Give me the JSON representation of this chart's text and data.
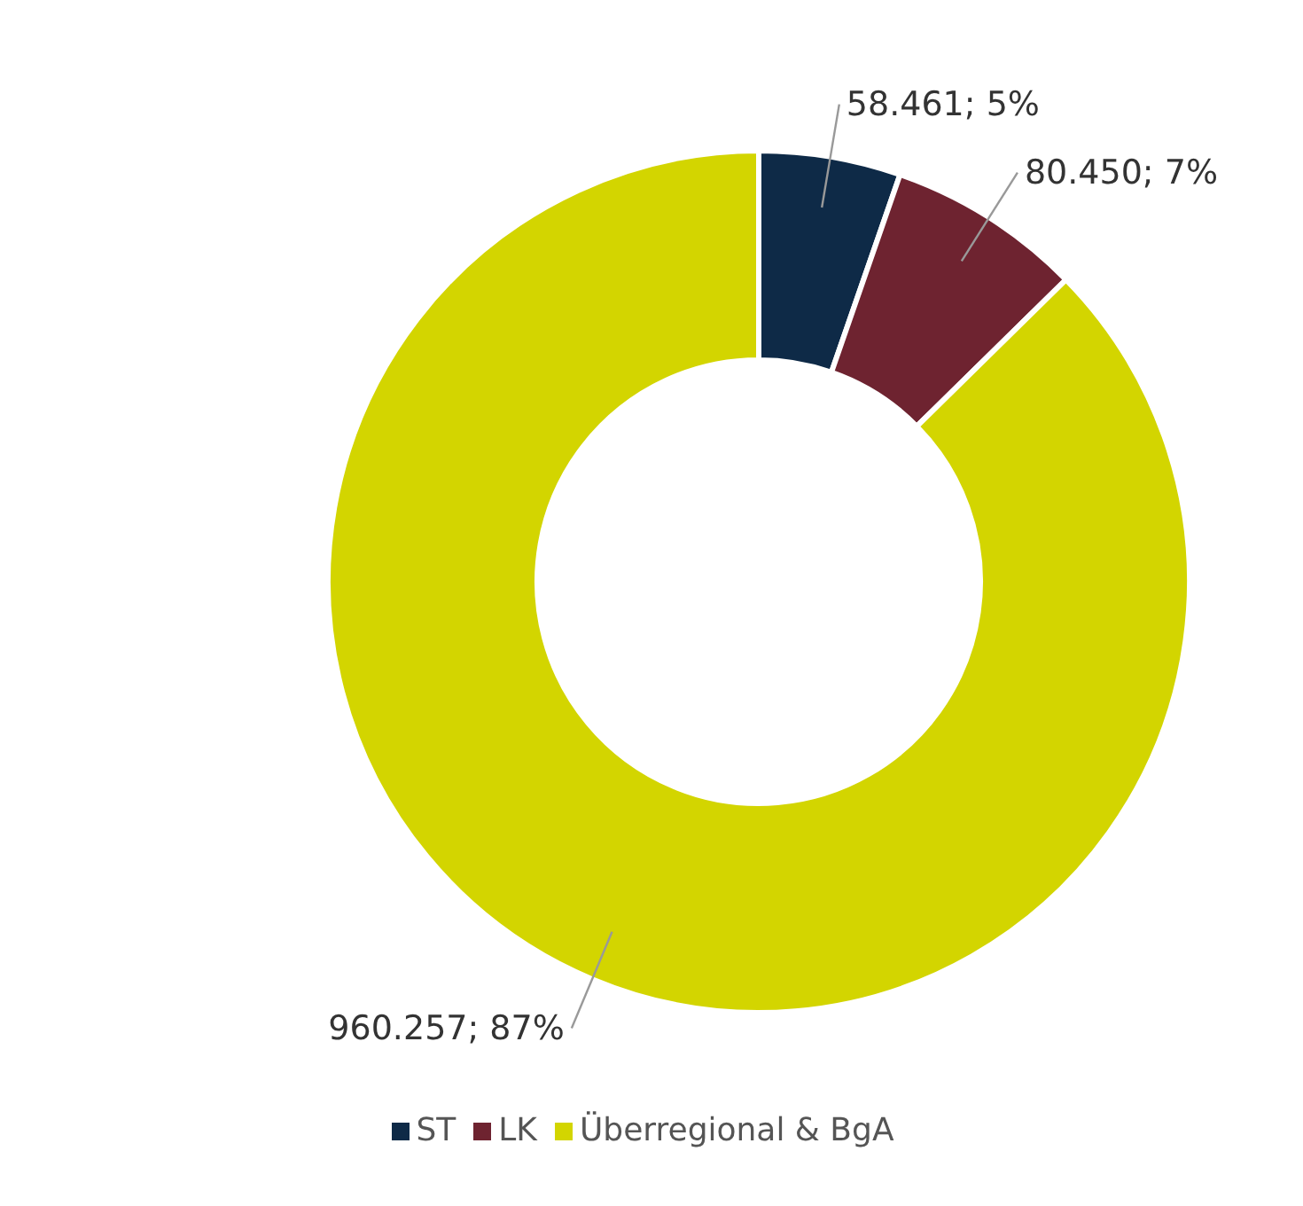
{
  "chart_data": {
    "type": "donut",
    "categories": [
      "ST",
      "LK",
      "Überregional & BgA"
    ],
    "values": [
      58461,
      80450,
      960257
    ],
    "colors": [
      "#0e2a47",
      "#6e2330",
      "#d3d500"
    ],
    "value_labels": [
      "58.461; 5%",
      "80.450; 7%",
      "960.257; 87%"
    ],
    "legend": "bottom"
  }
}
